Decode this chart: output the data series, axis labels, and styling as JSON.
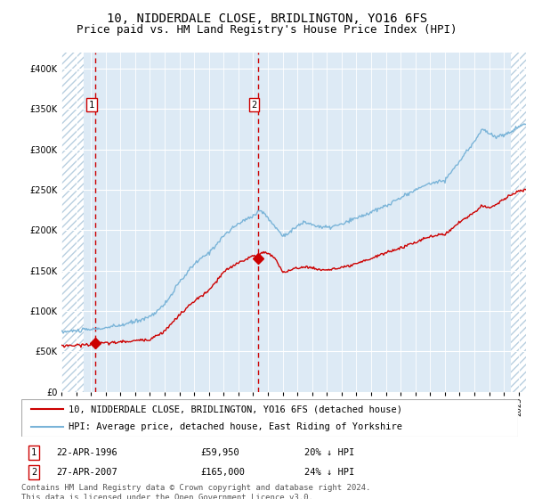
{
  "title": "10, NIDDERDALE CLOSE, BRIDLINGTON, YO16 6FS",
  "subtitle": "Price paid vs. HM Land Registry's House Price Index (HPI)",
  "legend_line1": "10, NIDDERDALE CLOSE, BRIDLINGTON, YO16 6FS (detached house)",
  "legend_line2": "HPI: Average price, detached house, East Riding of Yorkshire",
  "footnote1": "Contains HM Land Registry data © Crown copyright and database right 2024.",
  "footnote2": "This data is licensed under the Open Government Licence v3.0.",
  "purchase1_date": "22-APR-1996",
  "purchase1_price": "£59,950",
  "purchase1_hpi": "20% ↓ HPI",
  "purchase2_date": "27-APR-2007",
  "purchase2_price": "£165,000",
  "purchase2_hpi": "24% ↓ HPI",
  "purchase1_x": 1996.31,
  "purchase1_y": 59950,
  "purchase2_x": 2007.32,
  "purchase2_y": 165000,
  "hpi_color": "#7ab4d8",
  "price_color": "#cc0000",
  "marker_color": "#cc0000",
  "vline_color": "#cc0000",
  "background_color": "#ddeaf5",
  "hatch_facecolor": "#ffffff",
  "hatch_edgecolor": "#b8cfe0",
  "grid_color": "#ffffff",
  "border_color": "#cccccc",
  "ylim": [
    0,
    420000
  ],
  "xlim_start": 1994.0,
  "xlim_end": 2025.5,
  "hatch_left_end": 1995.5,
  "hatch_right_start": 2024.5,
  "title_fontsize": 10,
  "subtitle_fontsize": 9,
  "tick_fontsize": 7,
  "legend_fontsize": 7.5,
  "info_fontsize": 7.5,
  "footnote_fontsize": 6.5
}
